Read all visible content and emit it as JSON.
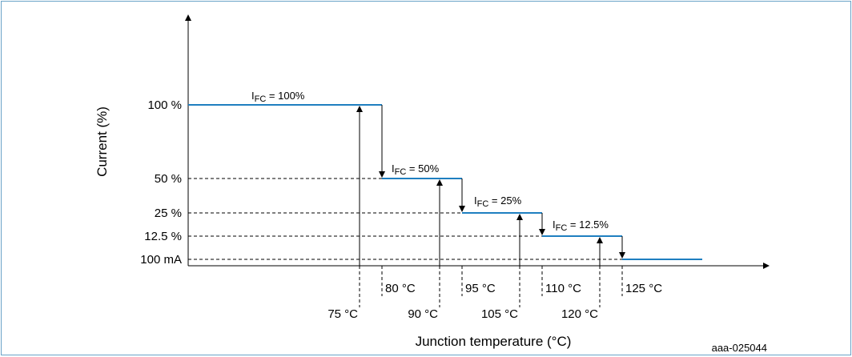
{
  "chart_data": {
    "type": "line",
    "xlabel": "Junction temperature  (°C)",
    "ylabel": "Current (%)",
    "y_tick_labels": [
      "100 %",
      "50 %",
      "25 %",
      "12.5 %",
      "100 mA"
    ],
    "figure_id": "aaa-025044",
    "line_color": "#1f7fc0",
    "segments": [
      {
        "label_main": "I",
        "label_sub": "FC",
        "label_rest": " = 100%",
        "level": "100 %",
        "from": null,
        "to": 80
      },
      {
        "label_main": "I",
        "label_sub": "FC",
        "label_rest": " = 50%",
        "level": "50 %",
        "from": 80,
        "to": 95
      },
      {
        "label_main": "I",
        "label_sub": "FC",
        "label_rest": " = 25%",
        "level": "25 %",
        "from": 95,
        "to": 110
      },
      {
        "label_main": "I",
        "label_sub": "FC",
        "label_rest": " = 12.5%",
        "level": "12.5 %",
        "from": 110,
        "to": 125
      },
      {
        "label_main": "",
        "label_sub": "",
        "label_rest": "",
        "level": "100 mA",
        "from": 125,
        "to": null
      }
    ],
    "step_down_temps": [
      {
        "value": 80,
        "label": "80 °C"
      },
      {
        "value": 95,
        "label": "95 °C"
      },
      {
        "value": 110,
        "label": "110 °C"
      },
      {
        "value": 125,
        "label": "125 °C"
      }
    ],
    "step_up_temps": [
      {
        "value": 75,
        "label": "75 °C"
      },
      {
        "value": 90,
        "label": "90 °C"
      },
      {
        "value": 105,
        "label": "105 °C"
      },
      {
        "value": 120,
        "label": "120 °C"
      }
    ]
  }
}
